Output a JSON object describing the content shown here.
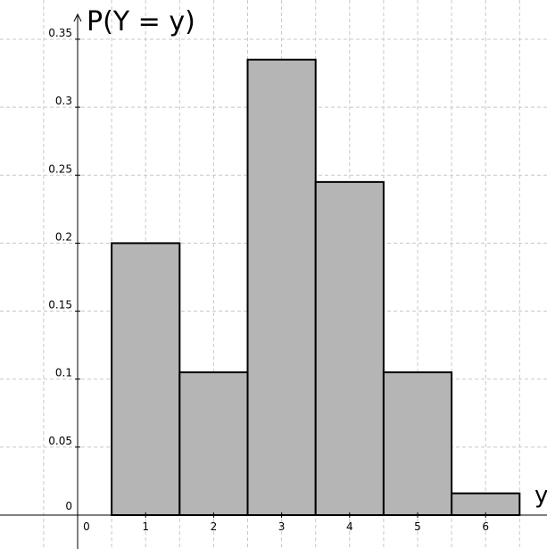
{
  "chart_data": {
    "type": "bar",
    "ylabel": "P(Y = y)",
    "xlabel": "y",
    "categories": [
      1,
      2,
      3,
      4,
      5,
      6
    ],
    "values": [
      0.2,
      0.105,
      0.335,
      0.245,
      0.105,
      0.016
    ],
    "bar_width": 1,
    "xlim": [
      -0.13,
      6.6
    ],
    "ylim": [
      0,
      0.36
    ],
    "x_ticks": [
      "0",
      "1",
      "2",
      "3",
      "4",
      "5",
      "6"
    ],
    "y_ticks": [
      "0",
      "0.05",
      "0.1",
      "0.15",
      "0.2",
      "0.25",
      "0.3",
      "0.35"
    ],
    "grid": true,
    "bar_color": "#b5b5b5",
    "edge_color": "#000000"
  }
}
